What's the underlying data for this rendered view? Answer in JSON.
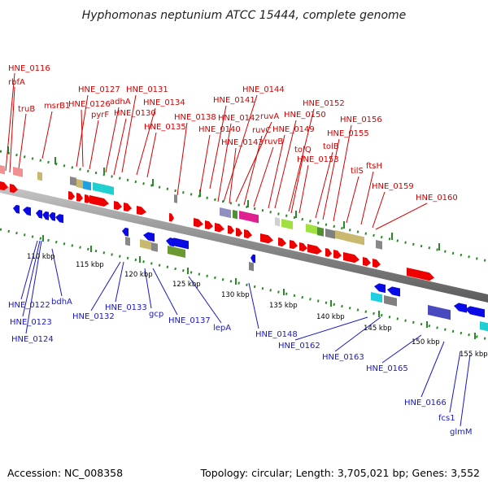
{
  "title": "Hyphomonas neptunium ATCC 15444, complete genome",
  "footer": {
    "accession": "Accession: NC_008358",
    "summary": "Topology: circular; Length: 3,705,021 bp; Genes: 3,552"
  },
  "colors": {
    "forward_label": "#d40000",
    "reverse_label": "#1818c8",
    "backbone": "#909090",
    "ticks": "#2a8a2a"
  },
  "scale": [
    "110 kbp",
    "115 kbp",
    "120 kbp",
    "125 kbp",
    "130 kbp",
    "135 kbp",
    "140 kbp",
    "145 kbp",
    "150 kbp",
    "155 kbp"
  ],
  "forward_labels": [
    "HNE_0116",
    "rbfA",
    "truB",
    "msrB1",
    "HNE_0127",
    "HNE_0126",
    "pyrF",
    "adhA",
    "HNE_0131",
    "HNE_0130",
    "HNE_0134",
    "HNE_0135",
    "HNE_0138",
    "HNE_0141",
    "HNE_0144",
    "HNE_0142",
    "ruvA",
    "HNE_0140",
    "ruvC",
    "HNE_0143",
    "ruvB",
    "HNE_0150",
    "HNE_0152",
    "HNE_0149",
    "tolQ",
    "HNE_0153",
    "HNE_0155",
    "HNE_0156",
    "tolB",
    "tilS",
    "ftsH",
    "HNE_0159",
    "HNE_0160"
  ],
  "reverse_labels": [
    "HNE_0122",
    "HNE_0123",
    "HNE_0124",
    "bdhA",
    "HNE_0132",
    "HNE_0133",
    "gcp",
    "HNE_0137",
    "lepA",
    "HNE_0148",
    "HNE_0162",
    "HNE_0163",
    "HNE_0165",
    "HNE_0166",
    "fcs1",
    "glmM"
  ]
}
